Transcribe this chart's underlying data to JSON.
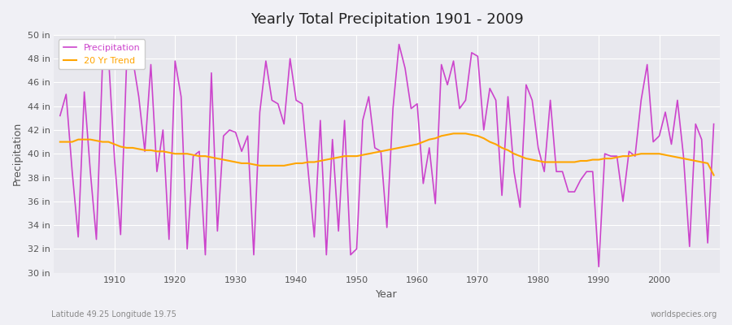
{
  "title": "Yearly Total Precipitation 1901 - 2009",
  "xlabel": "Year",
  "ylabel": "Precipitation",
  "subtitle_left": "Latitude 49.25 Longitude 19.75",
  "subtitle_right": "worldspecies.org",
  "ylim": [
    30,
    50
  ],
  "yticks": [
    30,
    32,
    34,
    36,
    38,
    40,
    42,
    44,
    46,
    48,
    50
  ],
  "precip_color": "#cc44cc",
  "trend_color": "#ffa500",
  "bg_color": "#e8e8ee",
  "legend_labels": [
    "Precipitation",
    "20 Yr Trend"
  ],
  "years": [
    1901,
    1902,
    1903,
    1904,
    1905,
    1906,
    1907,
    1908,
    1909,
    1910,
    1911,
    1912,
    1913,
    1914,
    1915,
    1916,
    1917,
    1918,
    1919,
    1920,
    1921,
    1922,
    1923,
    1924,
    1925,
    1926,
    1927,
    1928,
    1929,
    1930,
    1931,
    1932,
    1933,
    1934,
    1935,
    1936,
    1937,
    1938,
    1939,
    1940,
    1941,
    1942,
    1943,
    1944,
    1945,
    1946,
    1947,
    1948,
    1949,
    1950,
    1951,
    1952,
    1953,
    1954,
    1955,
    1956,
    1957,
    1958,
    1959,
    1960,
    1961,
    1962,
    1963,
    1964,
    1965,
    1966,
    1967,
    1968,
    1969,
    1970,
    1971,
    1972,
    1973,
    1974,
    1975,
    1976,
    1977,
    1978,
    1979,
    1980,
    1981,
    1982,
    1983,
    1984,
    1985,
    1986,
    1987,
    1988,
    1989,
    1990,
    1991,
    1992,
    1993,
    1994,
    1995,
    1996,
    1997,
    1998,
    1999,
    2000,
    2001,
    2002,
    2003,
    2004,
    2005,
    2006,
    2007,
    2008,
    2009
  ],
  "precip": [
    43.2,
    45.0,
    38.5,
    33.0,
    45.2,
    38.5,
    32.8,
    47.5,
    48.2,
    39.5,
    33.2,
    47.8,
    48.0,
    44.8,
    40.2,
    47.5,
    38.5,
    42.0,
    32.8,
    47.8,
    44.8,
    32.0,
    39.8,
    40.2,
    31.5,
    46.8,
    33.5,
    41.5,
    42.0,
    41.8,
    40.2,
    41.5,
    31.5,
    43.5,
    47.8,
    44.5,
    44.2,
    42.5,
    48.0,
    44.5,
    44.2,
    38.5,
    33.0,
    42.8,
    31.5,
    41.2,
    33.5,
    42.8,
    31.5,
    32.0,
    42.8,
    44.8,
    40.5,
    40.2,
    33.8,
    43.8,
    49.2,
    47.2,
    43.8,
    44.2,
    37.5,
    40.5,
    35.8,
    47.5,
    45.8,
    47.8,
    43.8,
    44.5,
    48.5,
    48.2,
    42.0,
    45.5,
    44.5,
    36.5,
    44.8,
    38.5,
    35.5,
    45.8,
    44.5,
    40.5,
    38.5,
    44.5,
    38.5,
    38.5,
    36.8,
    36.8,
    37.8,
    38.5,
    38.5,
    30.5,
    40.0,
    39.8,
    39.8,
    36.0,
    40.2,
    39.8,
    44.5,
    47.5,
    41.0,
    41.5,
    43.5,
    40.8,
    44.5,
    39.8,
    32.2,
    42.5,
    41.2,
    32.5,
    42.5
  ],
  "trend": [
    41.0,
    41.0,
    41.0,
    41.2,
    41.2,
    41.2,
    41.1,
    41.0,
    41.0,
    40.8,
    40.6,
    40.5,
    40.5,
    40.4,
    40.3,
    40.3,
    40.2,
    40.2,
    40.1,
    40.0,
    40.0,
    40.0,
    39.9,
    39.8,
    39.8,
    39.7,
    39.6,
    39.5,
    39.4,
    39.3,
    39.2,
    39.2,
    39.1,
    39.0,
    39.0,
    39.0,
    39.0,
    39.0,
    39.1,
    39.2,
    39.2,
    39.3,
    39.3,
    39.4,
    39.5,
    39.6,
    39.7,
    39.8,
    39.8,
    39.8,
    39.9,
    40.0,
    40.1,
    40.2,
    40.3,
    40.4,
    40.5,
    40.6,
    40.7,
    40.8,
    41.0,
    41.2,
    41.3,
    41.5,
    41.6,
    41.7,
    41.7,
    41.7,
    41.6,
    41.5,
    41.3,
    41.0,
    40.8,
    40.5,
    40.3,
    40.0,
    39.8,
    39.6,
    39.5,
    39.4,
    39.3,
    39.3,
    39.3,
    39.3,
    39.3,
    39.3,
    39.4,
    39.4,
    39.5,
    39.5,
    39.6,
    39.6,
    39.7,
    39.8,
    39.8,
    39.9,
    40.0,
    40.0,
    40.0,
    40.0,
    39.9,
    39.8,
    39.7,
    39.6,
    39.5,
    39.4,
    39.3,
    39.2,
    38.2
  ]
}
